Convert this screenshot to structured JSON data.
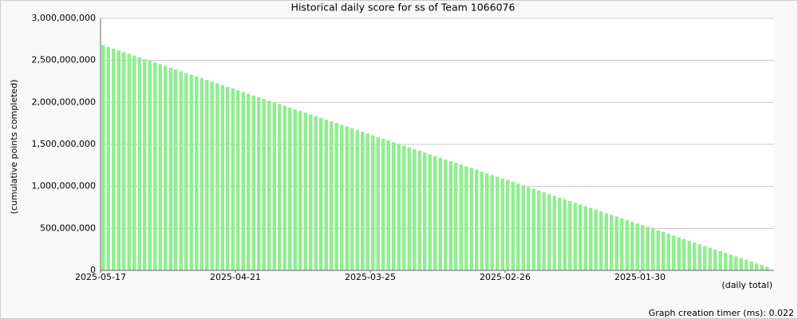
{
  "chart_data": {
    "type": "bar",
    "title": "Historical daily score for ss of Team 1066076",
    "y_label": "(cumulative points completed)",
    "x_label": "(daily total)",
    "annotation": "Graph creation timer (ms): 0.022",
    "color": "#90ee90",
    "grid": true,
    "ylim": [
      0,
      3000000000
    ],
    "yticks": [
      0,
      {
        "value": 500000000,
        "label": "500,000,000"
      },
      {
        "value": 1000000000,
        "label": "1,000,000,000"
      },
      {
        "value": 1500000000,
        "label": "1,500,000,000"
      },
      {
        "value": 2000000000,
        "label": "2,000,000,000"
      },
      {
        "value": 2500000000,
        "label": "2,500,000,000"
      },
      {
        "value": 3000000000,
        "label": "3,000,000,000"
      }
    ],
    "categories": [
      "2025-05-17",
      null,
      null,
      null,
      null,
      null,
      null,
      null,
      null,
      null,
      null,
      null,
      null,
      null,
      null,
      null,
      null,
      null,
      null,
      null,
      null,
      null,
      null,
      null,
      null,
      null,
      "2025-04-21",
      null,
      null,
      null,
      null,
      null,
      null,
      null,
      null,
      null,
      null,
      null,
      null,
      null,
      null,
      null,
      null,
      null,
      null,
      null,
      null,
      null,
      null,
      null,
      null,
      null,
      "2025-03-25",
      null,
      null,
      null,
      null,
      null,
      null,
      null,
      null,
      null,
      null,
      null,
      null,
      null,
      null,
      null,
      null,
      null,
      null,
      null,
      null,
      null,
      null,
      null,
      null,
      null,
      "2025-02-26",
      null,
      null,
      null,
      null,
      null,
      null,
      null,
      null,
      null,
      null,
      null,
      null,
      null,
      null,
      null,
      null,
      null,
      null,
      null,
      null,
      null,
      null,
      null,
      null,
      null,
      "2025-01-30",
      null,
      null,
      null,
      null,
      null,
      null,
      null,
      null,
      null,
      null,
      null,
      null,
      null,
      null,
      null,
      null,
      null,
      null,
      null,
      null,
      null,
      null,
      null,
      null
    ],
    "values": [
      2680000000,
      2659400000,
      2638800000,
      2618200000,
      2597600000,
      2577000000,
      2556400000,
      2535800000,
      2515200000,
      2494600000,
      2474000000,
      2453400000,
      2432800000,
      2412200000,
      2391600000,
      2371000000,
      2350400000,
      2329800000,
      2309200000,
      2288600000,
      2268000000,
      2247400000,
      2226800000,
      2206200000,
      2185600000,
      2165000000,
      2144400000,
      2123800000,
      2103200000,
      2082600000,
      2062000000,
      2041400000,
      2020800000,
      2000200000,
      1979600000,
      1959000000,
      1938400000,
      1917800000,
      1897200000,
      1876600000,
      1856000000,
      1835400000,
      1814800000,
      1794200000,
      1773600000,
      1753000000,
      1732400000,
      1711800000,
      1691200000,
      1670600000,
      1650000000,
      1629400000,
      1608800000,
      1588200000,
      1567600000,
      1547000000,
      1526400000,
      1505800000,
      1485200000,
      1464600000,
      1444000000,
      1423400000,
      1402800000,
      1382200000,
      1361600000,
      1341000000,
      1320400000,
      1299800000,
      1279200000,
      1258600000,
      1238000000,
      1217400000,
      1196800000,
      1176200000,
      1155600000,
      1135000000,
      1114400000,
      1093800000,
      1073200000,
      1052600000,
      1032000000,
      1011400000,
      990800000,
      970200000,
      949600000,
      929000000,
      908400000,
      887800000,
      867200000,
      846600000,
      826000000,
      805400000,
      784800000,
      764200000,
      743600000,
      723000000,
      702400000,
      681800000,
      661200000,
      640600000,
      620000000,
      599400000,
      578800000,
      558200000,
      537600000,
      517000000,
      496400000,
      475800000,
      455200000,
      434600000,
      414000000,
      393400000,
      372800000,
      352200000,
      331600000,
      311000000,
      290400000,
      269800000,
      249200000,
      228600000,
      208000000,
      187400000,
      166800000,
      146200000,
      125600000,
      105000000,
      84400000,
      63800000,
      43200000
    ]
  }
}
